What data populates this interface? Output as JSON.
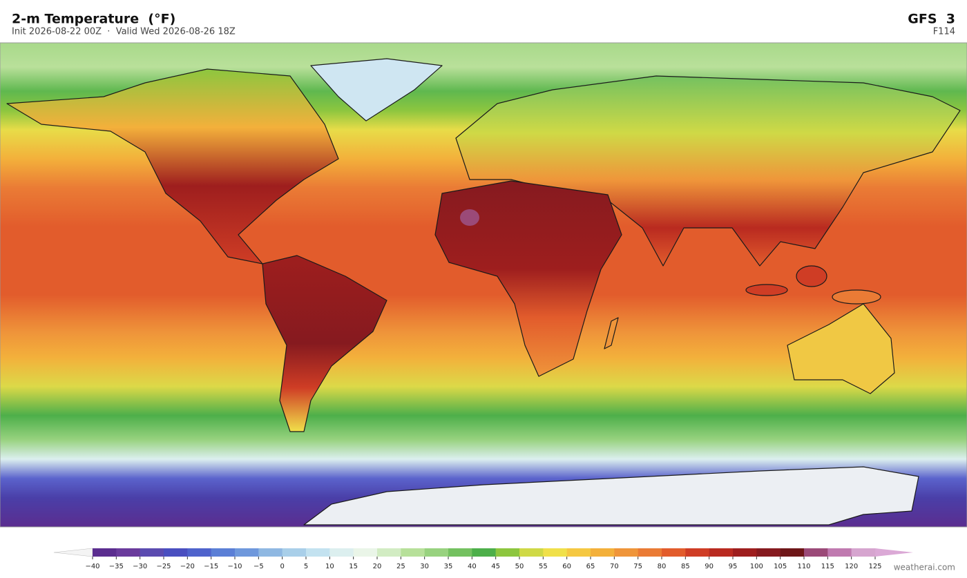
{
  "header": {
    "title": "2-m Temperature  (°F)",
    "subtitle": "Init 2026-08-22 00Z  ·  Valid Wed 2026-08-26 18Z",
    "model": "GFS  3",
    "forecast_hour": "F114"
  },
  "colorbar": {
    "ticks": [
      {
        "value": -40,
        "label": "−40"
      },
      {
        "value": -35,
        "label": "−35"
      },
      {
        "value": -30,
        "label": "−30"
      },
      {
        "value": -25,
        "label": "−25"
      },
      {
        "value": -20,
        "label": "−20"
      },
      {
        "value": -15,
        "label": "−15"
      },
      {
        "value": -10,
        "label": "−10"
      },
      {
        "value": -5,
        "label": "−5"
      },
      0,
      5,
      10,
      15,
      20,
      25,
      30,
      35,
      40,
      45,
      50,
      55,
      60,
      65,
      70,
      75,
      80,
      85,
      90,
      95,
      100,
      105,
      110,
      115,
      120,
      125
    ],
    "colors": [
      "#5b2d8f",
      "#6a3b9c",
      "#5b4bb0",
      "#4a4fc0",
      "#4f63cc",
      "#5b7fd6",
      "#6f98dc",
      "#8fb8e2",
      "#a9cfe9",
      "#c3e2f0",
      "#dcefef",
      "#eaf5e8",
      "#d2ecc3",
      "#b7e09a",
      "#98d27f",
      "#74c160",
      "#4daf4a",
      "#8dc63f",
      "#cfd946",
      "#f0e04a",
      "#f5c842",
      "#f3b03b",
      "#ef953a",
      "#ea7b35",
      "#e25c2c",
      "#cf3d25",
      "#b92a20",
      "#9e1e1e",
      "#861a1f",
      "#6e1618",
      "#9b4a78",
      "#c07ab0",
      "#d6a5cf"
    ],
    "under_color": "#f4f4f4",
    "over_color": "#dba9d6"
  },
  "watermark": "weatherai.com"
}
